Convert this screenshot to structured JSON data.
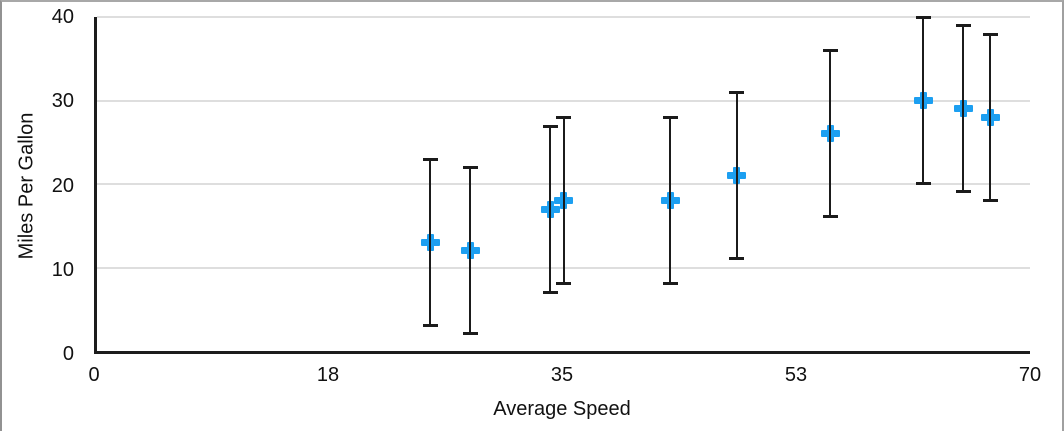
{
  "frame": {
    "background": "#ffffff",
    "border_color": "#a0a0a0"
  },
  "chart_data": {
    "type": "scatter",
    "title": "",
    "xlabel": "Average Speed",
    "ylabel": "Miles Per Gallon",
    "xlim": [
      0,
      70
    ],
    "ylim": [
      0,
      40
    ],
    "xtick_labels": [
      "0",
      "18",
      "35",
      "53",
      "70"
    ],
    "ytick_labels": [
      "0",
      "10",
      "20",
      "30",
      "40"
    ],
    "grid": "horizontal-only",
    "legend": "none",
    "marker": {
      "shape": "plus",
      "color": "#1C9FF1"
    },
    "error_bars": {
      "mode": "fixed",
      "value": 10,
      "direction": "both",
      "color": "#1b1b1b",
      "cap_width": 15
    },
    "points": [
      {
        "x": 25,
        "y": 13
      },
      {
        "x": 28,
        "y": 12
      },
      {
        "x": 34,
        "y": 17
      },
      {
        "x": 35,
        "y": 18
      },
      {
        "x": 43,
        "y": 18
      },
      {
        "x": 48,
        "y": 21
      },
      {
        "x": 55,
        "y": 26
      },
      {
        "x": 62,
        "y": 30
      },
      {
        "x": 65,
        "y": 29
      },
      {
        "x": 67,
        "y": 28
      }
    ]
  }
}
